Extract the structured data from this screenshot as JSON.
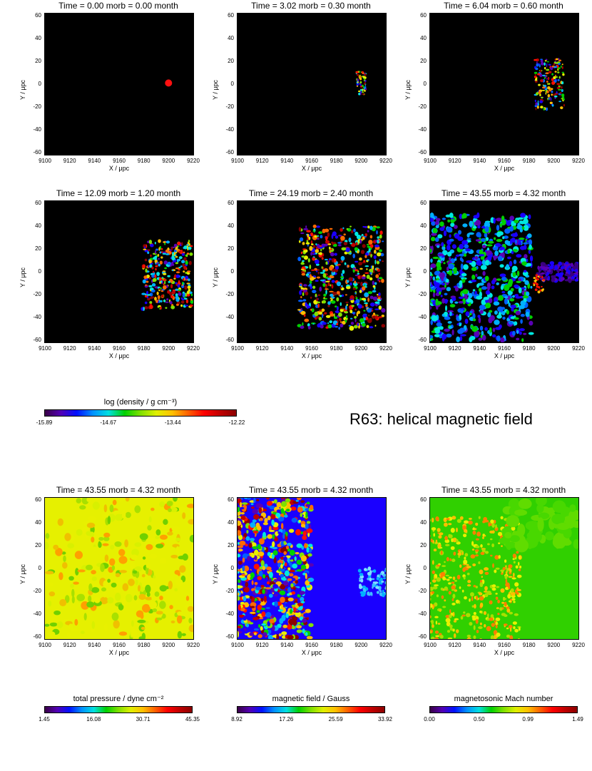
{
  "chart_data": {
    "type": "heatmap",
    "run_label": "R63: helical magnetic field",
    "x_axis": {
      "label": "X / μpc",
      "ticks": [
        "9100",
        "9120",
        "9140",
        "9160",
        "9180",
        "9200",
        "9220"
      ],
      "range": [
        9100,
        9220
      ]
    },
    "y_axis": {
      "label": "Y / μpc",
      "ticks": [
        "60",
        "40",
        "20",
        "0",
        "-20",
        "-40",
        "-60"
      ],
      "range": [
        -62,
        62
      ]
    },
    "colormap": "rainbow (purple-blue-cyan-green-yellow-red-dark red)",
    "panels": [
      {
        "title": "Time = 0.00 morb = 0.00 month",
        "quantity": "log density",
        "t_orb": 0.0,
        "t_month": 0.0
      },
      {
        "title": "Time = 3.02 morb = 0.30 month",
        "quantity": "log density",
        "t_orb": 3.02,
        "t_month": 0.3
      },
      {
        "title": "Time = 6.04 morb = 0.60 month",
        "quantity": "log density",
        "t_orb": 6.04,
        "t_month": 0.6
      },
      {
        "title": "Time = 12.09 morb = 1.20 month",
        "quantity": "log density",
        "t_orb": 12.09,
        "t_month": 1.2
      },
      {
        "title": "Time = 24.19 morb = 2.40 month",
        "quantity": "log density",
        "t_orb": 24.19,
        "t_month": 2.4
      },
      {
        "title": "Time = 43.55 morb = 4.32 month",
        "quantity": "log density",
        "t_orb": 43.55,
        "t_month": 4.32
      },
      {
        "title": "Time = 43.55 morb = 4.32 month",
        "quantity": "total pressure",
        "t_orb": 43.55,
        "t_month": 4.32
      },
      {
        "title": "Time = 43.55 morb = 4.32 month",
        "quantity": "magnetic field",
        "t_orb": 43.55,
        "t_month": 4.32
      },
      {
        "title": "Time = 43.55 morb = 4.32 month",
        "quantity": "magnetosonic Mach number",
        "t_orb": 43.55,
        "t_month": 4.32
      }
    ],
    "colorbars": [
      {
        "title": "log (density / g cm⁻³)",
        "ticks": [
          "-15.89",
          "-14.67",
          "-13.44",
          "-12.22"
        ],
        "range": [
          -15.89,
          -12.22
        ]
      },
      {
        "title": "total pressure / dyne cm⁻²",
        "ticks": [
          "1.45",
          "16.08",
          "30.71",
          "45.35"
        ],
        "range": [
          1.45,
          45.35
        ]
      },
      {
        "title": "magnetic field / Gauss",
        "ticks": [
          "8.92",
          "17.26",
          "25.59",
          "33.92"
        ],
        "range": [
          8.92,
          33.92
        ]
      },
      {
        "title": "magnetosonic Mach number",
        "ticks": [
          "0.00",
          "0.50",
          "0.99",
          "1.49"
        ],
        "range": [
          0.0,
          1.49
        ]
      }
    ]
  }
}
